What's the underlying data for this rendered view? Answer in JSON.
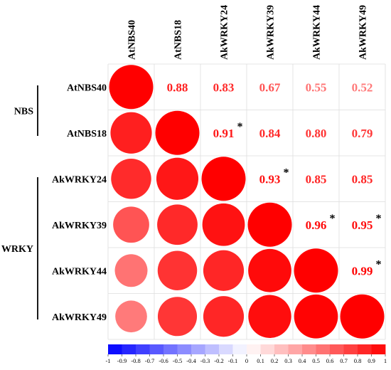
{
  "chart_data": {
    "type": "heatmap",
    "variables": [
      "AtNBS40",
      "AtNBS18",
      "AkWRKY24",
      "AkWRKY39",
      "AkWRKY44",
      "AkWRKY49"
    ],
    "groups": [
      {
        "name": "NBS",
        "members": [
          "AtNBS40",
          "AtNBS18"
        ]
      },
      {
        "name": "WRKY",
        "members": [
          "AkWRKY24",
          "AkWRKY39",
          "AkWRKY44",
          "AkWRKY49"
        ]
      }
    ],
    "matrix": [
      [
        1.0,
        0.88,
        0.83,
        0.67,
        0.55,
        0.52
      ],
      [
        0.88,
        1.0,
        0.91,
        0.84,
        0.8,
        0.79
      ],
      [
        0.83,
        0.91,
        1.0,
        0.93,
        0.85,
        0.85
      ],
      [
        0.67,
        0.84,
        0.93,
        1.0,
        0.96,
        0.95
      ],
      [
        0.55,
        0.8,
        0.85,
        0.96,
        1.0,
        0.99
      ],
      [
        0.52,
        0.79,
        0.85,
        0.95,
        0.99,
        1.0
      ]
    ],
    "upper_labels": [
      {
        "row": 0,
        "col": 1,
        "text": "0.88",
        "star": false
      },
      {
        "row": 0,
        "col": 2,
        "text": "0.83",
        "star": false
      },
      {
        "row": 0,
        "col": 3,
        "text": "0.67",
        "star": false
      },
      {
        "row": 0,
        "col": 4,
        "text": "0.55",
        "star": false
      },
      {
        "row": 0,
        "col": 5,
        "text": "0.52",
        "star": false
      },
      {
        "row": 1,
        "col": 2,
        "text": "0.91",
        "star": true
      },
      {
        "row": 1,
        "col": 3,
        "text": "0.84",
        "star": false
      },
      {
        "row": 1,
        "col": 4,
        "text": "0.80",
        "star": false
      },
      {
        "row": 1,
        "col": 5,
        "text": "0.79",
        "star": false
      },
      {
        "row": 2,
        "col": 3,
        "text": "0.93",
        "star": true
      },
      {
        "row": 2,
        "col": 4,
        "text": "0.85",
        "star": false
      },
      {
        "row": 2,
        "col": 5,
        "text": "0.85",
        "star": false
      },
      {
        "row": 3,
        "col": 4,
        "text": "0.96",
        "star": true
      },
      {
        "row": 3,
        "col": 5,
        "text": "0.95",
        "star": true
      },
      {
        "row": 4,
        "col": 5,
        "text": "0.99",
        "star": true
      }
    ],
    "star_symbol": "*",
    "colorbar": {
      "range": [
        -1,
        1
      ],
      "ticks": [
        "-1",
        "-0.9",
        "-0.8",
        "-0.7",
        "-0.6",
        "-0.5",
        "-0.4",
        "-0.3",
        "-0.2",
        "-0.1",
        "0",
        "0.1",
        "0.2",
        "0.3",
        "0.4",
        "0.5",
        "0.6",
        "0.7",
        "0.8",
        "0.9",
        "1"
      ]
    },
    "colors": {
      "negative": "#0000ff",
      "neutral": "#ffffff",
      "positive": "#ff0000",
      "grid": "#dddddd",
      "text": "#000000"
    }
  }
}
